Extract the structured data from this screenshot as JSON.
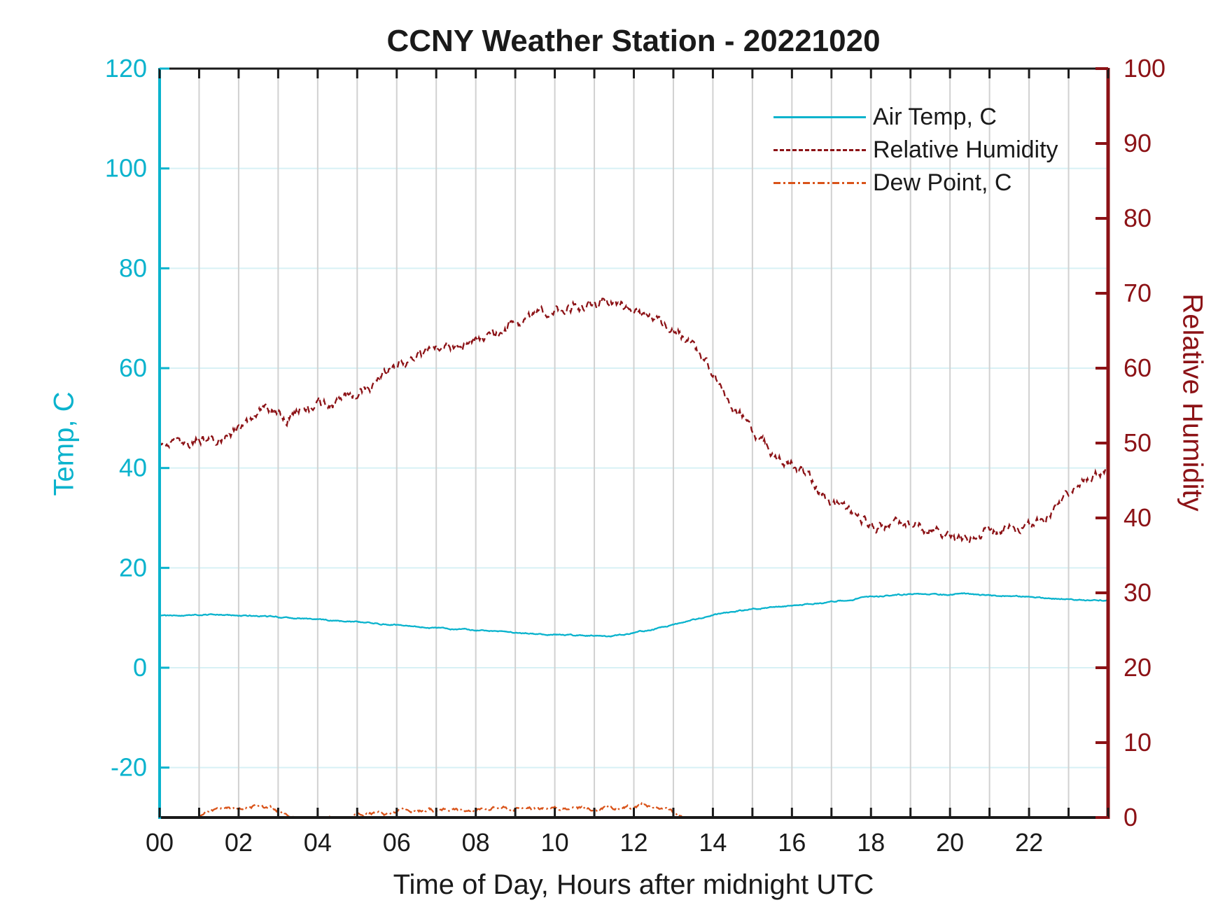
{
  "title": "CCNY Weather Station - 20221020",
  "colors": {
    "temp_axis": "#0ab3cd",
    "humidity_axis": "#8c1216",
    "dew_point": "#d95319",
    "grid_vertical": "#d1d1d1",
    "grid_horizontal": "#d8f1f5",
    "axis_black": "#1a1a1a",
    "text": "#1a1a1a"
  },
  "chart_data": {
    "type": "line",
    "title": "CCNY Weather Station - 20221020",
    "xlabel": "Time of Day, Hours after midnight UTC",
    "ylabel_left": "Temp, C",
    "ylabel_right": "Relative Humidity",
    "x_range": [
      0,
      24
    ],
    "x_tick_step": 1,
    "x_labeled_ticks": [
      {
        "v": 0,
        "label": "00"
      },
      {
        "v": 2,
        "label": "02"
      },
      {
        "v": 4,
        "label": "04"
      },
      {
        "v": 6,
        "label": "06"
      },
      {
        "v": 8,
        "label": "08"
      },
      {
        "v": 10,
        "label": "10"
      },
      {
        "v": 12,
        "label": "12"
      },
      {
        "v": 14,
        "label": "14"
      },
      {
        "v": 16,
        "label": "16"
      },
      {
        "v": 18,
        "label": "18"
      },
      {
        "v": 20,
        "label": "20"
      },
      {
        "v": 22,
        "label": "22"
      }
    ],
    "y_left_range": [
      -30,
      120
    ],
    "y_left_ticks": [
      -20,
      0,
      20,
      40,
      60,
      80,
      100,
      120
    ],
    "y_right_range": [
      0,
      100
    ],
    "y_right_ticks": [
      0,
      10,
      20,
      30,
      40,
      50,
      60,
      70,
      80,
      90,
      100
    ],
    "grid": {
      "vertical": "every hour, gray",
      "horizontal": "every 20 C, light cyan"
    },
    "legend_position": "upper-right",
    "series": [
      {
        "name": "Air Temp, C",
        "axis": "left",
        "style": "solid",
        "color_key": "temp_axis",
        "noise": 0.16,
        "points": [
          [
            0,
            10.4
          ],
          [
            0.5,
            10.5
          ],
          [
            1,
            10.65
          ],
          [
            1.5,
            10.6
          ],
          [
            2,
            10.45
          ],
          [
            2.5,
            10.35
          ],
          [
            3,
            10.15
          ],
          [
            3.5,
            9.95
          ],
          [
            4,
            9.65
          ],
          [
            4.5,
            9.4
          ],
          [
            5,
            9.15
          ],
          [
            5.5,
            8.9
          ],
          [
            6,
            8.55
          ],
          [
            6.5,
            8.2
          ],
          [
            7,
            7.95
          ],
          [
            7.5,
            7.7
          ],
          [
            8,
            7.5
          ],
          [
            8.5,
            7.3
          ],
          [
            9,
            7.0
          ],
          [
            9.5,
            6.8
          ],
          [
            10,
            6.6
          ],
          [
            10.5,
            6.5
          ],
          [
            11,
            6.4
          ],
          [
            11.3,
            6.35
          ],
          [
            11.7,
            6.6
          ],
          [
            12,
            7.0
          ],
          [
            12.5,
            7.7
          ],
          [
            13,
            8.6
          ],
          [
            13.5,
            9.6
          ],
          [
            14,
            10.5
          ],
          [
            14.5,
            11.2
          ],
          [
            15,
            11.7
          ],
          [
            15.5,
            12.1
          ],
          [
            16,
            12.4
          ],
          [
            16.5,
            12.8
          ],
          [
            17,
            13.2
          ],
          [
            17.5,
            13.7
          ],
          [
            18,
            14.2
          ],
          [
            18.5,
            14.5
          ],
          [
            19,
            14.7
          ],
          [
            19.5,
            14.7
          ],
          [
            20,
            14.6
          ],
          [
            20.3,
            14.9
          ],
          [
            20.7,
            14.6
          ],
          [
            21,
            14.5
          ],
          [
            21.5,
            14.4
          ],
          [
            22,
            14.2
          ],
          [
            22.5,
            13.9
          ],
          [
            23,
            13.7
          ],
          [
            23.5,
            13.5
          ],
          [
            24,
            13.5
          ]
        ]
      },
      {
        "name": "Relative Humidity",
        "axis": "right",
        "style": "dashed",
        "color_key": "humidity_axis",
        "noise": 0.9,
        "points": [
          [
            0,
            49.5
          ],
          [
            0.5,
            49.8
          ],
          [
            1,
            50.3
          ],
          [
            1.5,
            50.8
          ],
          [
            2,
            51.5
          ],
          [
            2.3,
            52.5
          ],
          [
            2.6,
            55.0
          ],
          [
            2.9,
            54.6
          ],
          [
            3.2,
            53.6
          ],
          [
            3.6,
            54.2
          ],
          [
            4,
            54.9
          ],
          [
            4.5,
            55.5
          ],
          [
            5,
            56.2
          ],
          [
            5.5,
            58.2
          ],
          [
            6,
            60.5
          ],
          [
            6.5,
            61.6
          ],
          [
            7,
            62.4
          ],
          [
            7.5,
            63.2
          ],
          [
            7.8,
            63.1
          ],
          [
            8,
            63.6
          ],
          [
            8.5,
            64.4
          ],
          [
            9,
            66.0
          ],
          [
            9.5,
            67.0
          ],
          [
            10,
            67.8
          ],
          [
            10.5,
            68.4
          ],
          [
            11,
            68.3
          ],
          [
            11.3,
            69.0
          ],
          [
            11.6,
            68.6
          ],
          [
            12,
            67.6
          ],
          [
            12.5,
            66.6
          ],
          [
            13,
            65.2
          ],
          [
            13.5,
            62.8
          ],
          [
            14,
            59.0
          ],
          [
            14.5,
            55.0
          ],
          [
            15,
            51.5
          ],
          [
            15.5,
            49.0
          ],
          [
            16,
            47.0
          ],
          [
            16.4,
            45.5
          ],
          [
            16.8,
            43.0
          ],
          [
            17.2,
            42.0
          ],
          [
            17.6,
            40.5
          ],
          [
            18,
            38.5
          ],
          [
            18.4,
            38.8
          ],
          [
            18.7,
            39.6
          ],
          [
            19.1,
            39.4
          ],
          [
            19.5,
            38.5
          ],
          [
            19.8,
            37.7
          ],
          [
            20.1,
            36.8
          ],
          [
            20.4,
            37.2
          ],
          [
            20.7,
            37.8
          ],
          [
            21.2,
            38.3
          ],
          [
            21.7,
            38.8
          ],
          [
            22.2,
            39.4
          ],
          [
            22.8,
            42.0
          ],
          [
            23.3,
            44.6
          ],
          [
            23.8,
            46.3
          ],
          [
            24,
            47.0
          ]
        ]
      },
      {
        "name": "Dew Point, C",
        "axis": "left",
        "style": "dashdot",
        "color_key": "dew_point",
        "noise": 0.45,
        "points": [
          [
            1.0,
            -29.6
          ],
          [
            1.3,
            -28.9
          ],
          [
            1.6,
            -28.4
          ],
          [
            2,
            -28.1
          ],
          [
            2.4,
            -27.7
          ],
          [
            2.7,
            -27.9
          ],
          [
            3,
            -28.4
          ],
          [
            3.3,
            -29.3
          ],
          [
            3.6,
            -30.3
          ],
          [
            3.9,
            -30.6
          ],
          [
            4.2,
            -29.9
          ],
          [
            4.5,
            -30.4
          ],
          [
            4.8,
            -29.7
          ],
          [
            5.1,
            -29.2
          ],
          [
            5.4,
            -28.9
          ],
          [
            5.7,
            -29.4
          ],
          [
            6,
            -28.8
          ],
          [
            6.3,
            -28.5
          ],
          [
            6.6,
            -28.6
          ],
          [
            7,
            -28.5
          ],
          [
            7.5,
            -28.4
          ],
          [
            8,
            -28.5
          ],
          [
            8.5,
            -28.3
          ],
          [
            9,
            -28.4
          ],
          [
            9.5,
            -28.2
          ],
          [
            10,
            -28.3
          ],
          [
            10.5,
            -28.1
          ],
          [
            11,
            -28.2
          ],
          [
            11.5,
            -28.0
          ],
          [
            12,
            -27.9
          ],
          [
            12.2,
            -27.4
          ],
          [
            12.5,
            -27.8
          ],
          [
            12.8,
            -28.3
          ],
          [
            13,
            -28.9
          ],
          [
            13.2,
            -29.6
          ],
          [
            13.35,
            -30.5
          ]
        ]
      }
    ]
  }
}
